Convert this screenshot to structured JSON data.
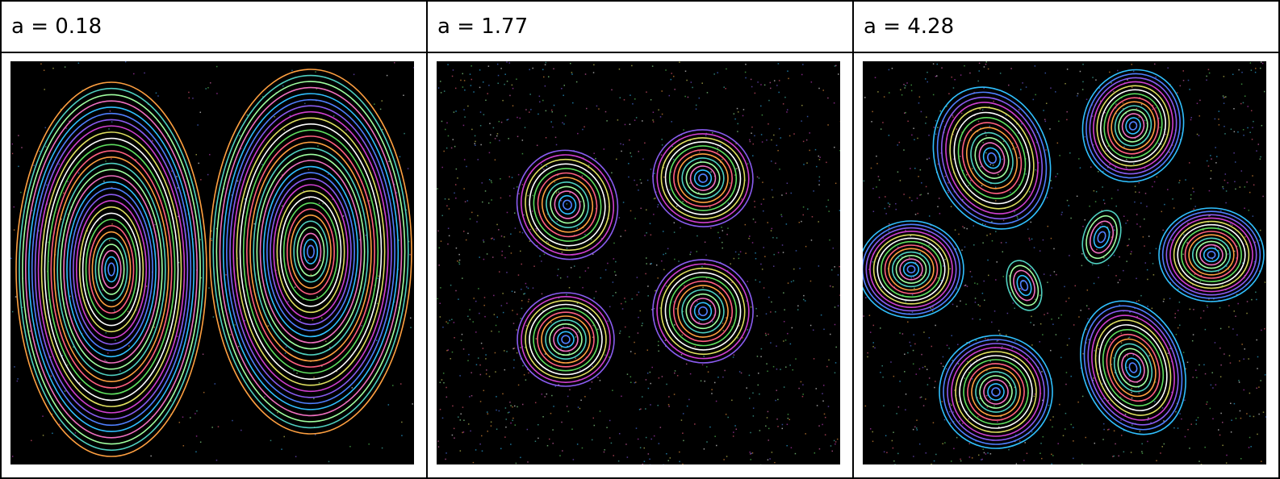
{
  "table": {
    "headers": [
      "a = 0.18",
      "a = 1.77",
      "a = 4.28"
    ]
  }
}
